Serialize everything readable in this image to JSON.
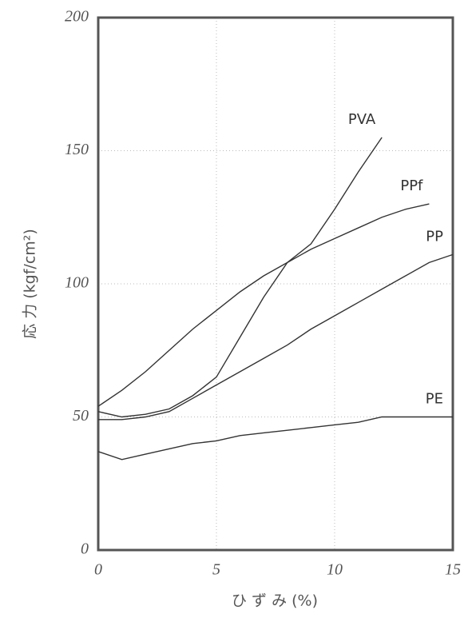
{
  "chart_data": {
    "type": "line",
    "x_label": "ひ ず み (%)",
    "y_label": "応 力 (kgf/cm²)",
    "x": [
      0,
      1,
      2,
      3,
      4,
      5,
      6,
      7,
      8,
      9,
      10,
      11,
      12,
      13,
      14,
      15
    ],
    "series": [
      {
        "name": "PVA",
        "color": "#333333",
        "values": [
          52,
          50,
          51,
          53,
          58,
          65,
          80,
          95,
          108,
          115,
          128,
          142,
          155,
          null,
          null,
          null
        ]
      },
      {
        "name": "PPf",
        "color": "#333333",
        "values": [
          54,
          60,
          67,
          75,
          83,
          90,
          97,
          103,
          108,
          113,
          117,
          121,
          125,
          128,
          130,
          null
        ]
      },
      {
        "name": "PP",
        "color": "#333333",
        "values": [
          49,
          49,
          50,
          52,
          57,
          62,
          67,
          72,
          77,
          83,
          88,
          93,
          98,
          103,
          108,
          111
        ]
      },
      {
        "name": "PE",
        "color": "#333333",
        "values": [
          37,
          34,
          36,
          38,
          40,
          41,
          43,
          44,
          45,
          46,
          47,
          48,
          50,
          50,
          50,
          50
        ]
      }
    ],
    "xlim": [
      0,
      15
    ],
    "xticks": [
      0,
      5,
      10,
      15
    ],
    "ylim": [
      0,
      200
    ],
    "yticks": [
      0,
      50,
      100,
      150,
      200
    ],
    "grid": true
  }
}
